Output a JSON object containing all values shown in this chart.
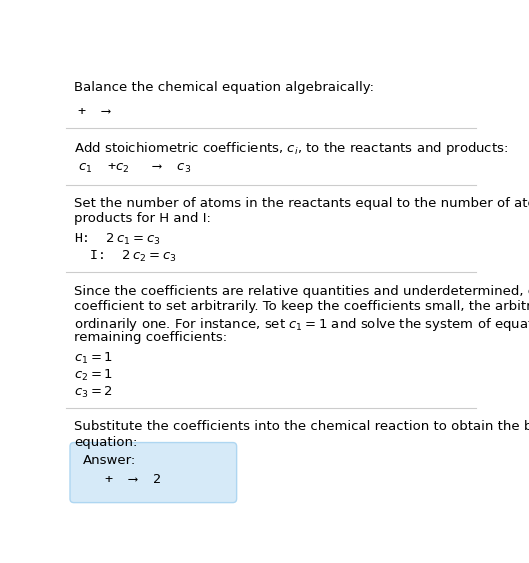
{
  "title": "Balance the chemical equation algebraically:",
  "section1_line1": "+  ⟶",
  "section2_header": "Add stoichiometric coefficients, $c_i$, to the reactants and products:",
  "section2_line1": "$c_1$  +$c_2$   ⟶  $c_3$",
  "section3_H": "H:  $2\\,c_1 = c_3$",
  "section3_I": "  I:  $2\\,c_2 = c_3$",
  "section4_c1": "$c_1 = 1$",
  "section4_c2": "$c_2 = 1$",
  "section4_c3": "$c_3 = 2$",
  "answer_label": "Answer:",
  "answer_line": "  +  ⟶  2",
  "bg_color": "#ffffff",
  "answer_box_color": "#d6eaf8",
  "answer_box_border": "#aed6f1",
  "separator_color": "#cccccc",
  "text_color": "#000000",
  "mono_font": "DejaVu Sans Mono",
  "sans_font": "DejaVu Sans"
}
